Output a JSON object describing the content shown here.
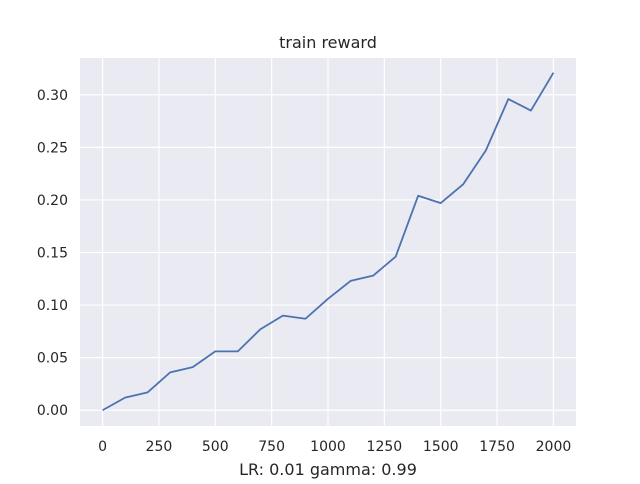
{
  "chart_data": {
    "type": "line",
    "title": "train reward",
    "xlabel": "LR: 0.01 gamma: 0.99",
    "ylabel": "",
    "xlim": [
      -100,
      2100
    ],
    "ylim": [
      -0.015,
      0.335
    ],
    "grid": true,
    "x_ticks": [
      0,
      250,
      500,
      750,
      1000,
      1250,
      1500,
      1750,
      2000
    ],
    "x_tick_labels": [
      "0",
      "250",
      "500",
      "750",
      "1000",
      "1250",
      "1500",
      "1750",
      "2000"
    ],
    "y_ticks": [
      0.0,
      0.05,
      0.1,
      0.15,
      0.2,
      0.25,
      0.3
    ],
    "y_tick_labels": [
      "0.00",
      "0.05",
      "0.10",
      "0.15",
      "0.20",
      "0.25",
      "0.30"
    ],
    "series": [
      {
        "color": "#4c72b0",
        "x": [
          0,
          100,
          200,
          300,
          400,
          500,
          600,
          700,
          800,
          900,
          1000,
          1100,
          1200,
          1300,
          1400,
          1500,
          1600,
          1700,
          1800,
          1900,
          2000
        ],
        "y": [
          0.0,
          0.012,
          0.017,
          0.036,
          0.041,
          0.056,
          0.056,
          0.077,
          0.09,
          0.087,
          0.106,
          0.123,
          0.128,
          0.146,
          0.204,
          0.197,
          0.215,
          0.247,
          0.296,
          0.285,
          0.321
        ]
      }
    ],
    "colors": {
      "plot_background": "#eaeaf2",
      "grid": "#ffffff"
    }
  }
}
